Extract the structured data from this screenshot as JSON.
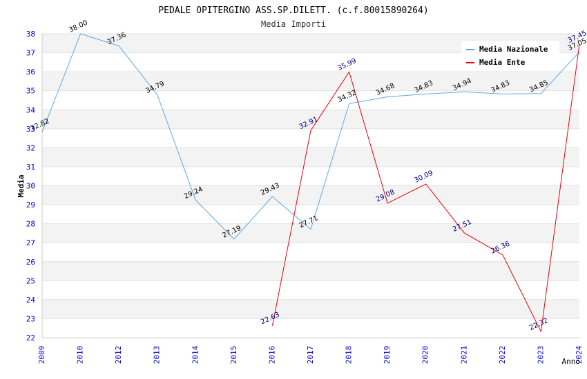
{
  "chart_data": {
    "type": "line",
    "title": "PEDALE OPITERGINO ASS.SP.DILETT. (c.f.80015890264)",
    "subtitle": "Media Importi",
    "xlabel": "Anno",
    "ylabel": "Media",
    "ylim": [
      22,
      38
    ],
    "yticks": [
      "22",
      "23",
      "24",
      "25",
      "26",
      "27",
      "28",
      "29",
      "30",
      "31",
      "32",
      "33",
      "34",
      "35",
      "36",
      "37",
      "38"
    ],
    "categories": [
      "2009",
      "2010",
      "2012",
      "2013",
      "2014",
      "2015",
      "2016",
      "2017",
      "2018",
      "2019",
      "2020",
      "2021",
      "2022",
      "2023",
      "2024"
    ],
    "legend_position": "top-right",
    "series": [
      {
        "name": "Media Nazionale",
        "color": "#5ea8e6",
        "label_color": "#000000",
        "values": [
          32.82,
          38.0,
          37.36,
          34.79,
          29.24,
          27.19,
          29.43,
          27.71,
          34.32,
          34.68,
          34.83,
          34.94,
          34.83,
          34.85,
          37.05
        ],
        "labels": [
          "32.82",
          "38.00",
          "37.36",
          "34.79",
          "29.24",
          "27.19",
          "29.43",
          "27.71",
          "34.32",
          "34.68",
          "34.83",
          "34.94",
          "34.83",
          "34.85",
          "37.05"
        ]
      },
      {
        "name": "Media Ente",
        "color": "#e8000b",
        "label_color": "#000080",
        "values": [
          null,
          null,
          null,
          null,
          null,
          null,
          22.63,
          32.91,
          35.99,
          29.08,
          30.09,
          27.51,
          26.36,
          22.32,
          37.45
        ],
        "labels": [
          "",
          "",
          "",
          "",
          "",
          "",
          "22.63",
          "32.91",
          "35.99",
          "29.08",
          "30.09",
          "27.51",
          "26.36",
          "22.32",
          "37.45"
        ]
      }
    ]
  }
}
